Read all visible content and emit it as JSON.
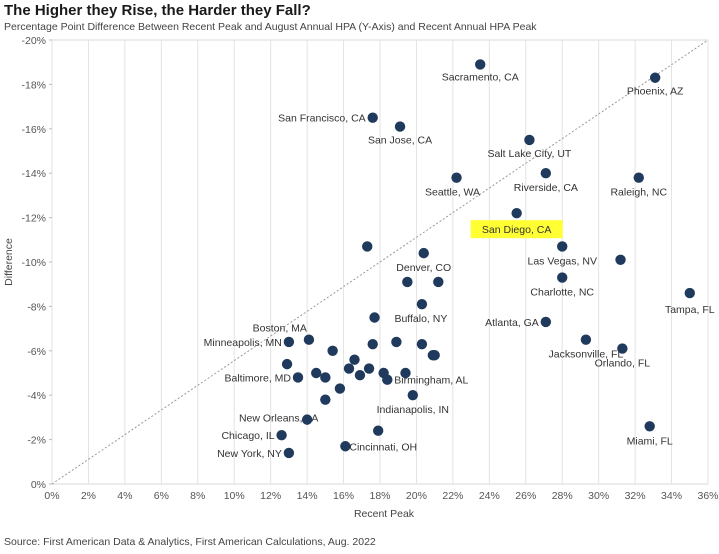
{
  "title": "The Higher they Rise, the Harder they Fall?",
  "subtitle": "Percentage Point Difference Between Recent Peak and August Annual HPA (Y-Axis) and Recent Annual HPA Peak",
  "source": "Source: First American Data & Analytics, First American Calculations, Aug. 2022",
  "chart_data": {
    "type": "scatter",
    "xlabel": "Recent Peak",
    "ylabel": "Difference",
    "xlim": [
      0,
      36
    ],
    "ylim": [
      0,
      -20
    ],
    "x_ticks": [
      "0%",
      "2%",
      "4%",
      "6%",
      "8%",
      "10%",
      "12%",
      "14%",
      "16%",
      "18%",
      "20%",
      "22%",
      "24%",
      "26%",
      "28%",
      "30%",
      "32%",
      "34%",
      "36%"
    ],
    "y_ticks": [
      "0%",
      "-2%",
      "-4%",
      "-6%",
      "-8%",
      "-10%",
      "-12%",
      "-14%",
      "-16%",
      "-18%",
      "-20%"
    ],
    "grid": "vertical",
    "reference_line": "diagonal dotted line",
    "point_color": "#1f3a5c",
    "highlight_color": "#ffff33",
    "points": [
      {
        "label": "Sacramento, CA",
        "x": 23.5,
        "y": -18.9
      },
      {
        "label": "Phoenix, AZ",
        "x": 33.1,
        "y": -18.3
      },
      {
        "label": "San Francisco, CA",
        "x": 17.6,
        "y": -16.5
      },
      {
        "label": "San Jose, CA",
        "x": 19.1,
        "y": -16.1
      },
      {
        "label": "Salt Lake City, UT",
        "x": 26.2,
        "y": -15.5
      },
      {
        "label": "Raleigh, NC",
        "x": 32.2,
        "y": -13.8
      },
      {
        "label": "Seattle, WA",
        "x": 22.2,
        "y": -13.8
      },
      {
        "label": "Riverside, CA",
        "x": 27.1,
        "y": -14.0
      },
      {
        "label": "San Diego, CA",
        "x": 25.5,
        "y": -12.2,
        "highlight": true
      },
      {
        "label": "Las Vegas, NV",
        "x": 28.0,
        "y": -10.7
      },
      {
        "label": "Denver, CO",
        "x": 20.4,
        "y": -10.4
      },
      {
        "label": "Charlotte, NC",
        "x": 28.0,
        "y": -9.3
      },
      {
        "label": "Tampa, FL",
        "x": 35.0,
        "y": -8.6
      },
      {
        "label": "Buffalo, NY",
        "x": 20.3,
        "y": -8.1
      },
      {
        "label": "Atlanta, GA",
        "x": 27.1,
        "y": -7.3
      },
      {
        "label": "Boston, MA",
        "x": 14.1,
        "y": -6.5
      },
      {
        "label": "Minneapolis, MN",
        "x": 13.0,
        "y": -6.4
      },
      {
        "label": "Jacksonville, FL",
        "x": 29.3,
        "y": -6.5
      },
      {
        "label": "Orlando, FL",
        "x": 31.3,
        "y": -6.1
      },
      {
        "label": "Baltimore, MD",
        "x": 13.5,
        "y": -4.8
      },
      {
        "label": "Birmingham, AL",
        "x": 18.4,
        "y": -4.7
      },
      {
        "label": "New Orleans, LA",
        "x": 15.0,
        "y": -3.8
      },
      {
        "label": "Indianapolis, IN",
        "x": 19.8,
        "y": -4.0
      },
      {
        "label": "Chicago, IL",
        "x": 12.6,
        "y": -2.2
      },
      {
        "label": "Cincinnati, OH",
        "x": 16.1,
        "y": -1.7
      },
      {
        "label": "New York, NY",
        "x": 13.0,
        "y": -1.4
      },
      {
        "label": "Miami, FL",
        "x": 32.8,
        "y": -2.6
      },
      {
        "label": "",
        "x": 17.3,
        "y": -10.7
      },
      {
        "label": "",
        "x": 31.2,
        "y": -10.1
      },
      {
        "label": "",
        "x": 19.5,
        "y": -9.1
      },
      {
        "label": "",
        "x": 21.2,
        "y": -9.1
      },
      {
        "label": "",
        "x": 17.7,
        "y": -7.5
      },
      {
        "label": "",
        "x": 12.9,
        "y": -5.4
      },
      {
        "label": "",
        "x": 14.5,
        "y": -5.0
      },
      {
        "label": "",
        "x": 15.0,
        "y": -4.8
      },
      {
        "label": "",
        "x": 15.4,
        "y": -6.0
      },
      {
        "label": "",
        "x": 15.8,
        "y": -4.3
      },
      {
        "label": "",
        "x": 16.3,
        "y": -5.2
      },
      {
        "label": "",
        "x": 16.6,
        "y": -5.6
      },
      {
        "label": "",
        "x": 16.9,
        "y": -4.9
      },
      {
        "label": "",
        "x": 17.4,
        "y": -5.2
      },
      {
        "label": "",
        "x": 17.6,
        "y": -6.3
      },
      {
        "label": "",
        "x": 18.2,
        "y": -5.0
      },
      {
        "label": "",
        "x": 18.9,
        "y": -6.4
      },
      {
        "label": "",
        "x": 19.4,
        "y": -5.0
      },
      {
        "label": "",
        "x": 20.3,
        "y": -6.3
      },
      {
        "label": "",
        "x": 20.9,
        "y": -5.8
      },
      {
        "label": "",
        "x": 21.0,
        "y": -5.8
      },
      {
        "label": "",
        "x": 14.0,
        "y": -2.9
      },
      {
        "label": "",
        "x": 17.9,
        "y": -2.4
      }
    ]
  }
}
